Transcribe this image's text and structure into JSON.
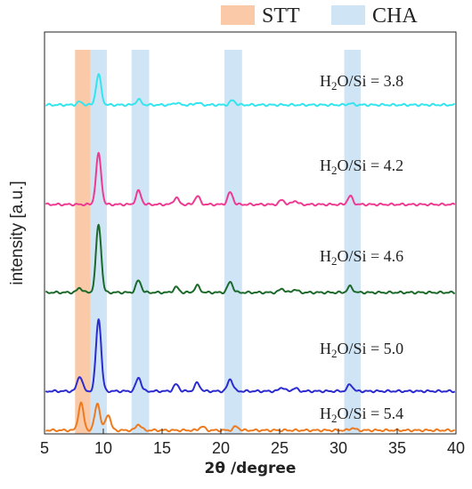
{
  "chart_data": {
    "type": "line",
    "xlabel": "2θ /degree",
    "ylabel": "intensity [a.u.]",
    "xlim": [
      5,
      40
    ],
    "x_ticks": [
      "5",
      "10",
      "15",
      "20",
      "25",
      "30",
      "35",
      "40"
    ],
    "y_ticks_labeled": false,
    "legend": {
      "placement": "top-right",
      "entries": [
        {
          "name": "STT",
          "color": "#f9c9a8"
        },
        {
          "name": "CHA",
          "color": "#cfe4f5"
        }
      ]
    },
    "highlight_bands": [
      {
        "group": "STT",
        "range": [
          7.6,
          8.9
        ]
      },
      {
        "group": "CHA",
        "range": [
          8.9,
          10.3
        ]
      },
      {
        "group": "CHA",
        "range": [
          12.4,
          13.9
        ]
      },
      {
        "group": "CHA",
        "range": [
          20.3,
          21.8
        ]
      },
      {
        "group": "CHA",
        "range": [
          30.5,
          31.9
        ]
      }
    ],
    "series": [
      {
        "name": "H₂O/Si = 3.8",
        "color": "#33e5ef",
        "peaks": [
          {
            "x": 8.0,
            "h": 4
          },
          {
            "x": 9.6,
            "h": 40
          },
          {
            "x": 13.0,
            "h": 7
          },
          {
            "x": 16.2,
            "h": 3
          },
          {
            "x": 18.0,
            "h": 3
          },
          {
            "x": 21.0,
            "h": 6
          },
          {
            "x": 31.0,
            "h": 2
          }
        ]
      },
      {
        "name": "H₂O/Si = 4.2",
        "color": "#ee3a93",
        "peaks": [
          {
            "x": 9.6,
            "h": 67
          },
          {
            "x": 13.0,
            "h": 18
          },
          {
            "x": 16.2,
            "h": 9
          },
          {
            "x": 18.0,
            "h": 11
          },
          {
            "x": 20.8,
            "h": 16
          },
          {
            "x": 25.2,
            "h": 6
          },
          {
            "x": 26.3,
            "h": 5
          },
          {
            "x": 31.0,
            "h": 11
          }
        ]
      },
      {
        "name": "H₂O/Si = 4.6",
        "color": "#1b6a2a",
        "peaks": [
          {
            "x": 8.0,
            "h": 6
          },
          {
            "x": 9.6,
            "h": 90
          },
          {
            "x": 13.0,
            "h": 16
          },
          {
            "x": 16.2,
            "h": 7
          },
          {
            "x": 18.0,
            "h": 9
          },
          {
            "x": 20.8,
            "h": 14
          },
          {
            "x": 25.2,
            "h": 5
          },
          {
            "x": 26.3,
            "h": 4
          },
          {
            "x": 31.0,
            "h": 8
          }
        ]
      },
      {
        "name": "H₂O/Si = 5.0",
        "color": "#2b2bd0",
        "peaks": [
          {
            "x": 8.0,
            "h": 20
          },
          {
            "x": 9.6,
            "h": 96
          },
          {
            "x": 13.0,
            "h": 18
          },
          {
            "x": 16.2,
            "h": 9
          },
          {
            "x": 18.0,
            "h": 11
          },
          {
            "x": 20.8,
            "h": 16
          },
          {
            "x": 25.2,
            "h": 5
          },
          {
            "x": 26.3,
            "h": 4
          },
          {
            "x": 31.0,
            "h": 9
          }
        ]
      },
      {
        "name": "H₂O/Si = 5.4",
        "color": "#ee7a1e",
        "peaks": [
          {
            "x": 8.1,
            "h": 36
          },
          {
            "x": 9.5,
            "h": 36
          },
          {
            "x": 10.4,
            "h": 21
          },
          {
            "x": 13.0,
            "h": 8
          },
          {
            "x": 18.4,
            "h": 5
          },
          {
            "x": 21.3,
            "h": 5
          },
          {
            "x": 31.2,
            "h": 3
          }
        ]
      }
    ],
    "series_labels": [
      {
        "prefix": "H",
        "sub": "2",
        "suffix": "O/Si = 3.8"
      },
      {
        "prefix": "H",
        "sub": "2",
        "suffix": "O/Si = 4.2"
      },
      {
        "prefix": "H",
        "sub": "2",
        "suffix": "O/Si = 4.6"
      },
      {
        "prefix": "H",
        "sub": "2",
        "suffix": "O/Si = 5.0"
      },
      {
        "prefix": "H",
        "sub": "2",
        "suffix": "O/Si = 5.4"
      }
    ]
  }
}
